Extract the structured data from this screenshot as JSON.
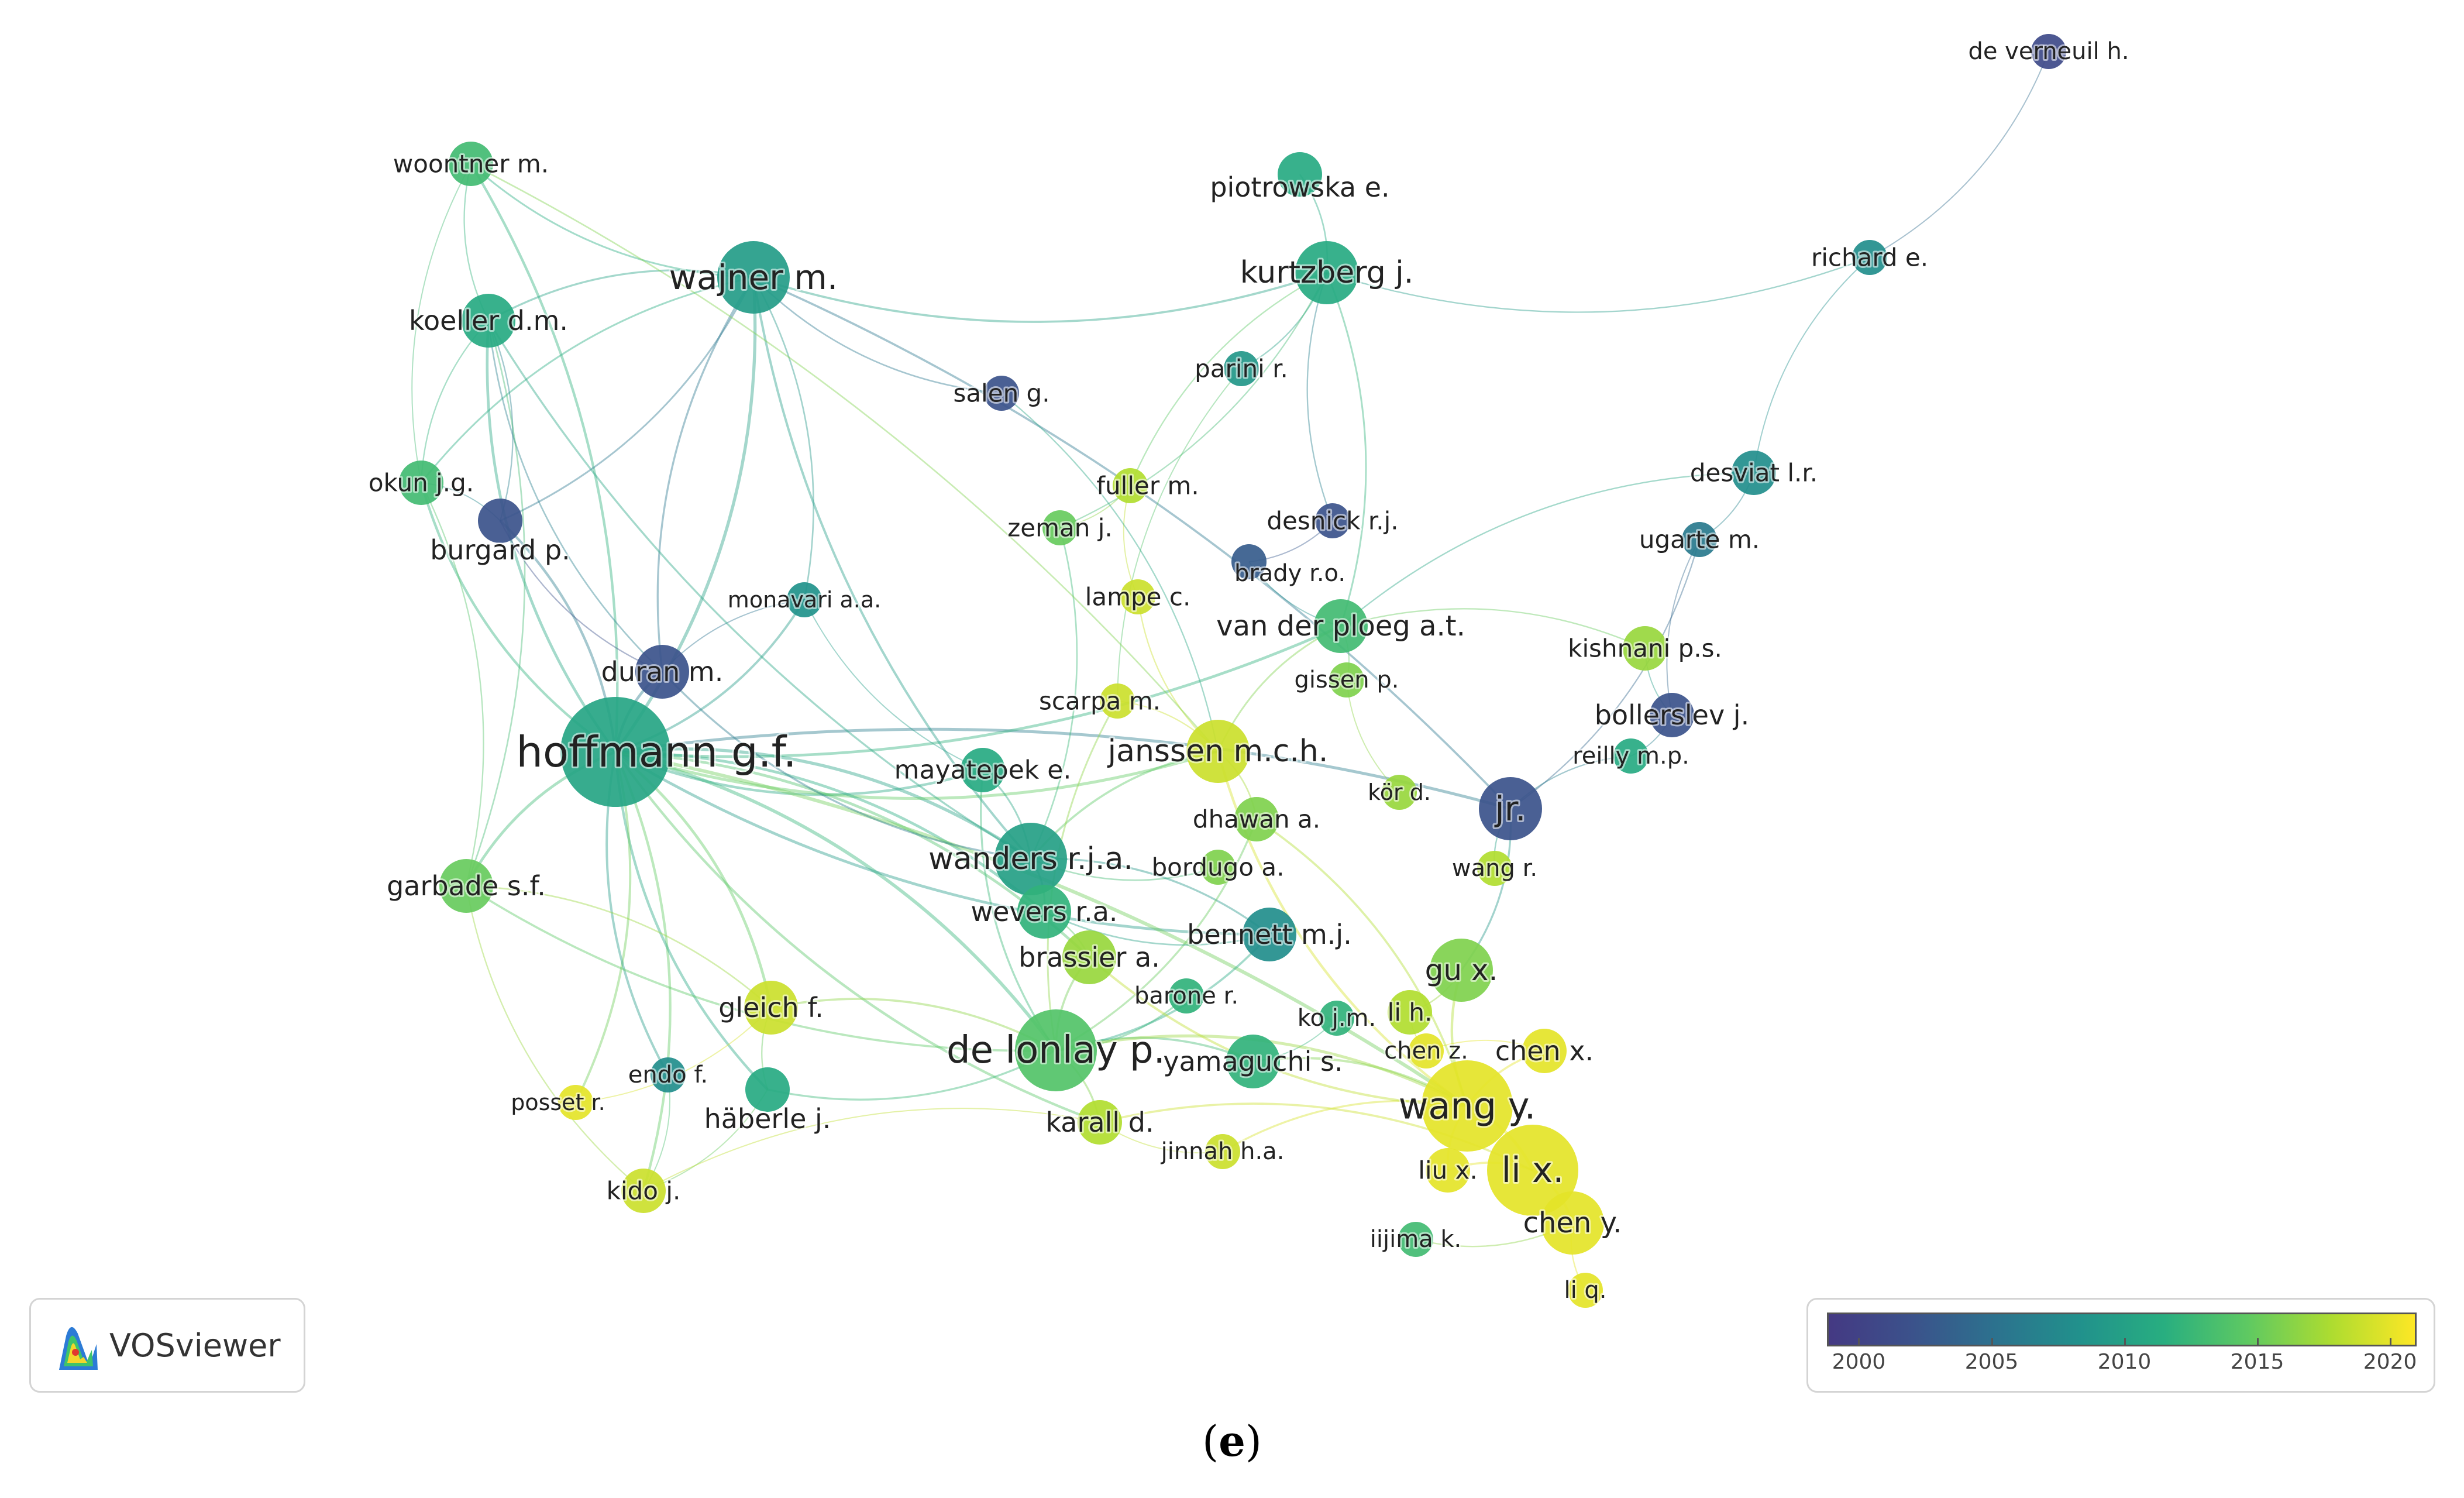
{
  "caption": {
    "open": "(",
    "letter": "e",
    "close": ")"
  },
  "logo": {
    "text": "VOSviewer",
    "icon": "vosviewer-logo-icon"
  },
  "legend": {
    "ticks": [
      "2000",
      "2005",
      "2010",
      "2015",
      "2020"
    ],
    "min_year": 1998.8,
    "max_year": 2021,
    "tick_years": [
      2000,
      2005,
      2010,
      2015,
      2020
    ]
  },
  "colors": {
    "scale": [
      "#443983",
      "#3b528b",
      "#2c728e",
      "#21918c",
      "#28ae80",
      "#5ec962",
      "#addc30",
      "#fde725"
    ]
  },
  "chart_data": {
    "type": "network",
    "nodes": [
      {
        "id": "hoffmann",
        "label": "hoffmann g.f.",
        "year": 2010.5,
        "weight": 10
      },
      {
        "id": "wajner",
        "label": "wajner m.",
        "year": 2009.5,
        "weight": 6
      },
      {
        "id": "koeller",
        "label": "koeller d.m.",
        "year": 2011,
        "weight": 4
      },
      {
        "id": "woontner",
        "label": "woontner m.",
        "year": 2013,
        "weight": 3
      },
      {
        "id": "okun",
        "label": "okun j.g.",
        "year": 2013,
        "weight": 3
      },
      {
        "id": "burgard",
        "label": "burgard p.",
        "year": 2002,
        "weight": 3
      },
      {
        "id": "monavari",
        "label": "monavari a.a.",
        "year": 2008.5,
        "weight": 2
      },
      {
        "id": "duran",
        "label": "duran m.",
        "year": 2002,
        "weight": 4
      },
      {
        "id": "garbade",
        "label": "garbade s.f.",
        "year": 2015,
        "weight": 4
      },
      {
        "id": "gleich",
        "label": "gleich f.",
        "year": 2019,
        "weight": 4
      },
      {
        "id": "endo",
        "label": "endo f.",
        "year": 2008,
        "weight": 2
      },
      {
        "id": "posset",
        "label": "posset r.",
        "year": 2020,
        "weight": 2
      },
      {
        "id": "haberle",
        "label": "häberle j.",
        "year": 2011,
        "weight": 3
      },
      {
        "id": "kido",
        "label": "kido j.",
        "year": 2019,
        "weight": 3
      },
      {
        "id": "piotrowska",
        "label": "piotrowska e.",
        "year": 2011,
        "weight": 3
      },
      {
        "id": "kurtzberg",
        "label": "kurtzberg j.",
        "year": 2011,
        "weight": 5
      },
      {
        "id": "parini",
        "label": "parini r.",
        "year": 2009,
        "weight": 2
      },
      {
        "id": "salen",
        "label": "salen g.",
        "year": 2002,
        "weight": 2
      },
      {
        "id": "fuller",
        "label": "fuller m.",
        "year": 2018,
        "weight": 2
      },
      {
        "id": "zeman",
        "label": "zeman j.",
        "year": 2015,
        "weight": 2
      },
      {
        "id": "desnick",
        "label": "desnick r.j.",
        "year": 2002,
        "weight": 2
      },
      {
        "id": "lampe",
        "label": "lampe c.",
        "year": 2019,
        "weight": 2
      },
      {
        "id": "brady",
        "label": "brady r.o.",
        "year": 2003,
        "weight": 2
      },
      {
        "id": "vanderploeg",
        "label": "van der ploeg a.t.",
        "year": 2013,
        "weight": 4
      },
      {
        "id": "gissen",
        "label": "gissen p.",
        "year": 2016,
        "weight": 2
      },
      {
        "id": "scarpa",
        "label": "scarpa m.",
        "year": 2019,
        "weight": 2
      },
      {
        "id": "janssen",
        "label": "janssen m.c.h.",
        "year": 2019,
        "weight": 5
      },
      {
        "id": "mayatepek",
        "label": "mayatepek e.",
        "year": 2011,
        "weight": 3
      },
      {
        "id": "kor",
        "label": "kör d.",
        "year": 2017,
        "weight": 2
      },
      {
        "id": "dhawan",
        "label": "dhawan a.",
        "year": 2016,
        "weight": 3
      },
      {
        "id": "jr",
        "label": "jr.",
        "year": 2002,
        "weight": 5
      },
      {
        "id": "wanders",
        "label": "wanders r.j.a.",
        "year": 2010,
        "weight": 6
      },
      {
        "id": "bordugo",
        "label": "bordugo a.",
        "year": 2016,
        "weight": 2
      },
      {
        "id": "wangr",
        "label": "wang r.",
        "year": 2018,
        "weight": 2
      },
      {
        "id": "wevers",
        "label": "wevers r.a.",
        "year": 2012,
        "weight": 4
      },
      {
        "id": "bennett",
        "label": "bennett m.j.",
        "year": 2008,
        "weight": 4
      },
      {
        "id": "brassier",
        "label": "brassier a.",
        "year": 2017,
        "weight": 4
      },
      {
        "id": "barone",
        "label": "barone r.",
        "year": 2012,
        "weight": 2
      },
      {
        "id": "koj",
        "label": "ko j.m.",
        "year": 2012,
        "weight": 2
      },
      {
        "id": "lih",
        "label": "li h.",
        "year": 2018,
        "weight": 3
      },
      {
        "id": "gux",
        "label": "gu x.",
        "year": 2016,
        "weight": 5
      },
      {
        "id": "chenz",
        "label": "chen z.",
        "year": 2020,
        "weight": 2
      },
      {
        "id": "chenx",
        "label": "chen x.",
        "year": 2020,
        "weight": 3
      },
      {
        "id": "delonlay",
        "label": "de lonlay p.",
        "year": 2014,
        "weight": 7
      },
      {
        "id": "yamaguchi",
        "label": "yamaguchi s.",
        "year": 2012,
        "weight": 4
      },
      {
        "id": "karall",
        "label": "karall d.",
        "year": 2018,
        "weight": 3
      },
      {
        "id": "wangy",
        "label": "wang y.",
        "year": 2020,
        "weight": 8
      },
      {
        "id": "jinnah",
        "label": "jinnah h.a.",
        "year": 2019,
        "weight": 2
      },
      {
        "id": "liux",
        "label": "liu x.",
        "year": 2020,
        "weight": 3
      },
      {
        "id": "lix",
        "label": "li x.",
        "year": 2020,
        "weight": 8
      },
      {
        "id": "cheny",
        "label": "chen y.",
        "year": 2020,
        "weight": 5
      },
      {
        "id": "iijima",
        "label": "iijima k.",
        "year": 2013,
        "weight": 2
      },
      {
        "id": "liq",
        "label": "li q.",
        "year": 2020,
        "weight": 2
      },
      {
        "id": "deverneuil",
        "label": "de verneuil h.",
        "year": 2001,
        "weight": 2
      },
      {
        "id": "richard",
        "label": "richard e.",
        "year": 2008,
        "weight": 2
      },
      {
        "id": "desviat",
        "label": "desviat l.r.",
        "year": 2008,
        "weight": 3
      },
      {
        "id": "ugarte",
        "label": "ugarte m.",
        "year": 2006,
        "weight": 2
      },
      {
        "id": "kishnani",
        "label": "kishnani p.s.",
        "year": 2017,
        "weight": 3
      },
      {
        "id": "bollerslev",
        "label": "bollerslev j.",
        "year": 2002,
        "weight": 3
      },
      {
        "id": "reilly",
        "label": "reilly m.p.",
        "year": 2011,
        "weight": 2
      }
    ],
    "links": [
      [
        "hoffmann",
        "wajner"
      ],
      [
        "hoffmann",
        "koeller"
      ],
      [
        "hoffmann",
        "woontner"
      ],
      [
        "hoffmann",
        "okun"
      ],
      [
        "hoffmann",
        "burgard"
      ],
      [
        "hoffmann",
        "duran"
      ],
      [
        "hoffmann",
        "garbade"
      ],
      [
        "hoffmann",
        "gleich"
      ],
      [
        "hoffmann",
        "monavari"
      ],
      [
        "hoffmann",
        "kido"
      ],
      [
        "hoffmann",
        "haberle"
      ],
      [
        "hoffmann",
        "posset"
      ],
      [
        "hoffmann",
        "endo"
      ],
      [
        "hoffmann",
        "wanders"
      ],
      [
        "hoffmann",
        "mayatepek"
      ],
      [
        "hoffmann",
        "delonlay"
      ],
      [
        "hoffmann",
        "janssen"
      ],
      [
        "hoffmann",
        "wevers"
      ],
      [
        "hoffmann",
        "bennett"
      ],
      [
        "hoffmann",
        "brassier"
      ],
      [
        "hoffmann",
        "karall"
      ],
      [
        "hoffmann",
        "jr"
      ],
      [
        "hoffmann",
        "vanderploeg"
      ],
      [
        "hoffmann",
        "wangy"
      ],
      [
        "wajner",
        "koeller"
      ],
      [
        "wajner",
        "woontner"
      ],
      [
        "wajner",
        "okun"
      ],
      [
        "wajner",
        "burgard"
      ],
      [
        "wajner",
        "duran"
      ],
      [
        "wajner",
        "monavari"
      ],
      [
        "wajner",
        "salen"
      ],
      [
        "wajner",
        "jr"
      ],
      [
        "wajner",
        "wanders"
      ],
      [
        "koeller",
        "woontner"
      ],
      [
        "koeller",
        "okun"
      ],
      [
        "koeller",
        "burgard"
      ],
      [
        "koeller",
        "duran"
      ],
      [
        "koeller",
        "garbade"
      ],
      [
        "woontner",
        "okun"
      ],
      [
        "okun",
        "burgard"
      ],
      [
        "burgard",
        "duran"
      ],
      [
        "okun",
        "garbade"
      ],
      [
        "garbade",
        "kido"
      ],
      [
        "garbade",
        "gleich"
      ],
      [
        "gleich",
        "haberle"
      ],
      [
        "gleich",
        "posset"
      ],
      [
        "kido",
        "endo"
      ],
      [
        "haberle",
        "kido"
      ],
      [
        "duran",
        "wanders"
      ],
      [
        "duran",
        "monavari"
      ],
      [
        "monavari",
        "mayatepek"
      ],
      [
        "mayatepek",
        "wanders"
      ],
      [
        "kurtzberg",
        "piotrowska"
      ],
      [
        "kurtzberg",
        "parini"
      ],
      [
        "kurtzberg",
        "fuller"
      ],
      [
        "kurtzberg",
        "vanderploeg"
      ],
      [
        "kurtzberg",
        "desnick"
      ],
      [
        "kurtzberg",
        "zeman"
      ],
      [
        "parini",
        "scarpa"
      ],
      [
        "fuller",
        "zeman"
      ],
      [
        "fuller",
        "lampe"
      ],
      [
        "desnick",
        "brady"
      ],
      [
        "brady",
        "vanderploeg"
      ],
      [
        "vanderploeg",
        "gissen"
      ],
      [
        "vanderploeg",
        "janssen"
      ],
      [
        "vanderploeg",
        "kishnani"
      ],
      [
        "gissen",
        "kor"
      ],
      [
        "scarpa",
        "janssen"
      ],
      [
        "lampe",
        "janssen"
      ],
      [
        "janssen",
        "dhawan"
      ],
      [
        "janssen",
        "wanders"
      ],
      [
        "wanders",
        "wevers"
      ],
      [
        "wanders",
        "bordugo"
      ],
      [
        "wevers",
        "brassier"
      ],
      [
        "brassier",
        "delonlay"
      ],
      [
        "delonlay",
        "karall"
      ],
      [
        "delonlay",
        "barone"
      ],
      [
        "delonlay",
        "yamaguchi"
      ],
      [
        "yamaguchi",
        "koj"
      ],
      [
        "yamaguchi",
        "wangy"
      ],
      [
        "bennett",
        "wanders"
      ],
      [
        "bennett",
        "delonlay"
      ],
      [
        "jr",
        "wangr"
      ],
      [
        "jr",
        "gux"
      ],
      [
        "gux",
        "wangy"
      ],
      [
        "gux",
        "lih"
      ],
      [
        "lih",
        "chenz"
      ],
      [
        "chenz",
        "chenx"
      ],
      [
        "chenx",
        "wangy"
      ],
      [
        "wangy",
        "lix"
      ],
      [
        "lix",
        "liux"
      ],
      [
        "lix",
        "cheny"
      ],
      [
        "cheny",
        "liq"
      ],
      [
        "cheny",
        "iijima"
      ],
      [
        "wangy",
        "liux"
      ],
      [
        "jinnah",
        "wangy"
      ],
      [
        "karall",
        "jinnah"
      ],
      [
        "deverneuil",
        "richard"
      ],
      [
        "richard",
        "desviat"
      ],
      [
        "desviat",
        "ugarte"
      ],
      [
        "ugarte",
        "bollerslev"
      ],
      [
        "ugarte",
        "jr"
      ],
      [
        "desviat",
        "vanderploeg"
      ],
      [
        "richard",
        "kurtzberg"
      ],
      [
        "kishnani",
        "bollerslev"
      ],
      [
        "bollerslev",
        "reilly"
      ],
      [
        "reilly",
        "jr"
      ],
      [
        "dhawan",
        "delonlay"
      ],
      [
        "wevers",
        "bennett"
      ],
      [
        "dhawan",
        "wangy"
      ],
      [
        "janssen",
        "wangy"
      ],
      [
        "delonlay",
        "wangy"
      ],
      [
        "brassier",
        "wangy"
      ],
      [
        "karall",
        "lix"
      ],
      [
        "haberle",
        "delonlay"
      ],
      [
        "gleich",
        "delonlay"
      ],
      [
        "garbade",
        "delonlay"
      ],
      [
        "kido",
        "karall"
      ],
      [
        "scarpa",
        "delonlay"
      ],
      [
        "zeman",
        "wanders"
      ],
      [
        "wajner",
        "kurtzberg"
      ],
      [
        "salen",
        "janssen"
      ],
      [
        "koeller",
        "wanders"
      ],
      [
        "woontner",
        "janssen"
      ],
      [
        "mayatepek",
        "delonlay"
      ]
    ]
  }
}
